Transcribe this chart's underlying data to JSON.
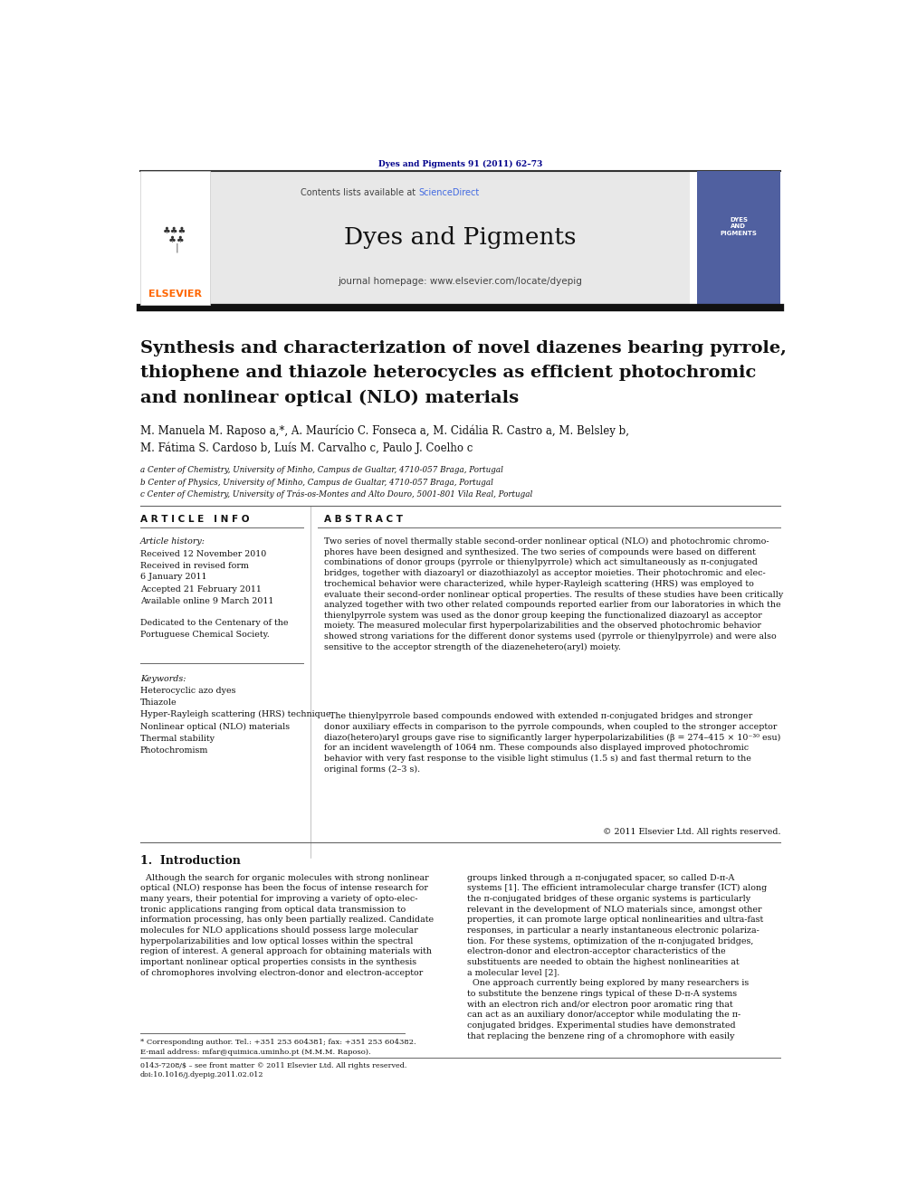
{
  "page_width": 9.92,
  "page_height": 13.23,
  "bg_color": "#ffffff",
  "journal_ref": "Dyes and Pigments 91 (2011) 62–73",
  "journal_ref_color": "#00008B",
  "header_bg": "#e8e8e8",
  "header_text": "Contents lists available at ",
  "sciencedirect_text": "ScienceDirect",
  "sciencedirect_color": "#4169E1",
  "journal_name": "Dyes and Pigments",
  "journal_homepage": "journal homepage: www.elsevier.com/locate/dyepig",
  "elsevier_color": "#FF6600",
  "title_line1": "Synthesis and characterization of novel diazenes bearing pyrrole,",
  "title_line2": "thiophene and thiazole heterocycles as efficient photochromic",
  "title_line3": "and nonlinear optical (NLO) materials",
  "authors": "M. Manuela M. Raposo a,*, A. Maurício C. Fonseca a, M. Cidália R. Castro a, M. Belsley b,",
  "authors2": "M. Fátima S. Cardoso b, Luís M. Carvalho c, Paulo J. Coelho c",
  "affil_a": "a Center of Chemistry, University of Minho, Campus de Gualtar, 4710-057 Braga, Portugal",
  "affil_b": "b Center of Physics, University of Minho, Campus de Gualtar, 4710-057 Braga, Portugal",
  "affil_c": "c Center of Chemistry, University of Trás-os-Montes and Alto Douro, 5001-801 Vila Real, Portugal",
  "article_info_header": "A R T I C L E   I N F O",
  "abstract_header": "A B S T R A C T",
  "article_history_label": "Article history:",
  "received1": "Received 12 November 2010",
  "received2": "Received in revised form",
  "received2b": "6 January 2011",
  "accepted": "Accepted 21 February 2011",
  "available": "Available online 9 March 2011",
  "dedicated": "Dedicated to the Centenary of the\nPortuguese Chemical Society.",
  "keywords_label": "Keywords:",
  "keywords": [
    "Heterocyclic azo dyes",
    "Thiazole",
    "Hyper-Rayleigh scattering (HRS) technique",
    "Nonlinear optical (NLO) materials",
    "Thermal stability",
    "Photochromism"
  ],
  "abstract_p1": "Two series of novel thermally stable second-order nonlinear optical (NLO) and photochromic chromo-\nphores have been designed and synthesized. The two series of compounds were based on different\ncombinations of donor groups (pyrrole or thienylpyrrole) which act simultaneously as π-conjugated\nbridges, together with diazoaryl or diazothiazolyl as acceptor moieties. Their photochromic and elec-\ntrochemical behavior were characterized, while hyper-Rayleigh scattering (HRS) was employed to\nevaluate their second-order nonlinear optical properties. The results of these studies have been critically\nanalyzed together with two other related compounds reported earlier from our laboratories in which the\nthienylpyrrole system was used as the donor group keeping the functionalized diazoaryl as acceptor\nmoiety. The measured molecular first hyperpolarizabilities and the observed photochromic behavior\nshowed strong variations for the different donor systems used (pyrrole or thienylpyrrole) and were also\nsensitive to the acceptor strength of the diazenehetero(aryl) moiety.",
  "abstract_p2": "  The thienylpyrrole based compounds endowed with extended π-conjugated bridges and stronger\ndonor auxiliary effects in comparison to the pyrrole compounds, when coupled to the stronger acceptor\ndiazo(hetero)aryl groups gave rise to significantly larger hyperpolarizabilities (β = 274–415 × 10⁻³⁰ esu)\nfor an incident wavelength of 1064 nm. These compounds also displayed improved photochromic\nbehavior with very fast response to the visible light stimulus (1.5 s) and fast thermal return to the\noriginal forms (2–3 s).",
  "copyright": "© 2011 Elsevier Ltd. All rights reserved.",
  "section1_title": "1.  Introduction",
  "intro_col1": "  Although the search for organic molecules with strong nonlinear\noptical (NLO) response has been the focus of intense research for\nmany years, their potential for improving a variety of opto-elec-\ntronic applications ranging from optical data transmission to\ninformation processing, has only been partially realized. Candidate\nmolecules for NLO applications should possess large molecular\nhyperpolarizabilities and low optical losses within the spectral\nregion of interest. A general approach for obtaining materials with\nimportant nonlinear optical properties consists in the synthesis\nof chromophores involving electron-donor and electron-acceptor",
  "intro_col2": "groups linked through a π-conjugated spacer, so called D-π-A\nsystems [1]. The efficient intramolecular charge transfer (ICT) along\nthe π-conjugated bridges of these organic systems is particularly\nrelevant in the development of NLO materials since, amongst other\nproperties, it can promote large optical nonlinearities and ultra-fast\nresponses, in particular a nearly instantaneous electronic polariza-\ntion. For these systems, optimization of the π-conjugated bridges,\nelectron-donor and electron-acceptor characteristics of the\nsubstituents are needed to obtain the highest nonlinearities at\na molecular level [2].\n  One approach currently being explored by many researchers is\nto substitute the benzene rings typical of these D-π-A systems\nwith an electron rich and/or electron poor aromatic ring that\ncan act as an auxiliary donor/acceptor while modulating the π-\nconjugated bridges. Experimental studies have demonstrated\nthat replacing the benzene ring of a chromophore with easily",
  "footnote1": "* Corresponding author. Tel.: +351 253 604381; fax: +351 253 604382.",
  "footnote2": "E-mail address: mfar@quimica.uminho.pt (M.M.M. Raposo).",
  "footnote3": "0143-7208/$ – see front matter © 2011 Elsevier Ltd. All rights reserved.",
  "footnote4": "doi:10.1016/j.dyepig.2011.02.012"
}
